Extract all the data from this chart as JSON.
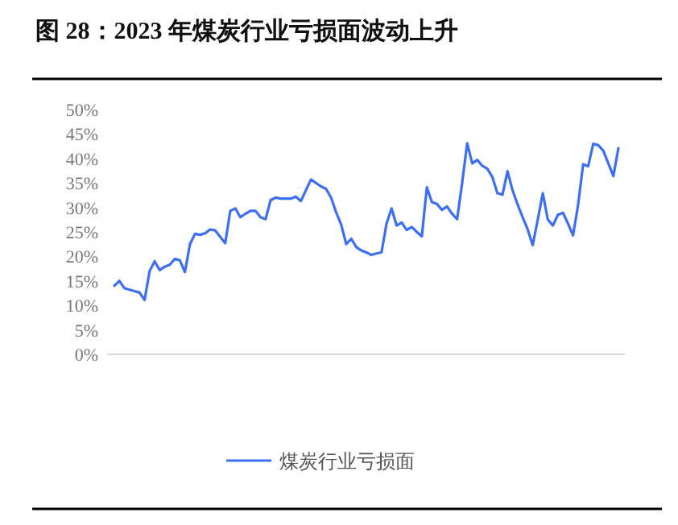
{
  "chart_data": {
    "type": "line",
    "title": "图 28：2023 年煤炭行业亏损面波动上升",
    "categories": [
      null,
      null,
      null,
      null,
      null,
      null,
      null,
      null,
      null,
      null,
      null,
      null,
      null,
      null,
      null,
      null,
      null,
      null,
      null,
      null,
      null,
      null,
      null,
      null,
      null,
      null,
      null,
      null,
      null,
      null,
      null,
      null,
      null,
      null,
      null,
      null,
      null,
      null,
      null,
      null,
      null,
      null,
      null,
      null,
      null,
      null,
      null,
      null,
      null,
      null,
      null,
      null,
      null,
      null,
      null,
      null,
      null,
      null,
      null,
      null,
      null,
      null,
      null,
      null,
      null,
      null,
      null,
      null,
      null,
      null,
      null,
      null,
      null,
      null,
      null,
      null,
      null,
      null,
      null,
      null,
      null,
      null,
      null,
      null,
      null,
      null,
      null,
      null,
      null,
      null,
      null,
      null,
      null,
      null,
      null,
      null,
      null,
      null,
      null,
      null,
      null
    ],
    "series": [
      {
        "name": "煤炭行业亏损面",
        "color": "#3d6ff5",
        "values": [
          14.0,
          15.0,
          13.5,
          13.2,
          12.9,
          12.6,
          11.1,
          17.0,
          19.0,
          17.2,
          17.9,
          18.3,
          19.5,
          19.2,
          16.8,
          22.5,
          24.6,
          24.4,
          24.7,
          25.5,
          25.3,
          24.0,
          22.7,
          29.3,
          29.8,
          28.0,
          28.7,
          29.3,
          29.3,
          28.0,
          27.6,
          31.5,
          32.0,
          31.8,
          31.8,
          31.8,
          32.2,
          31.3,
          33.5,
          35.7,
          35.0,
          34.3,
          33.8,
          32.0,
          29.0,
          26.5,
          22.5,
          23.6,
          21.9,
          21.2,
          20.8,
          20.3,
          20.6,
          20.8,
          26.7,
          29.8,
          26.3,
          26.9,
          25.4,
          26.0,
          25.0,
          24.1,
          34.1,
          31.1,
          30.7,
          29.5,
          30.2,
          28.7,
          27.6,
          35.0,
          43.1,
          39.0,
          39.7,
          38.5,
          37.9,
          36.2,
          32.9,
          32.6,
          37.4,
          33.5,
          30.6,
          28.0,
          25.5,
          22.3,
          27.5,
          32.9,
          27.5,
          26.3,
          28.5,
          28.9,
          26.7,
          24.3,
          30.5,
          38.8,
          38.4,
          43.0,
          42.7,
          41.6,
          39.0,
          36.4,
          42.1
        ]
      }
    ],
    "ylim": [
      0,
      50
    ],
    "yticks": [
      {
        "value": 0,
        "label": "0%"
      },
      {
        "value": 5,
        "label": "5%"
      },
      {
        "value": 10,
        "label": "10%"
      },
      {
        "value": 15,
        "label": "15%"
      },
      {
        "value": 20,
        "label": "20%"
      },
      {
        "value": 25,
        "label": "25%"
      },
      {
        "value": 30,
        "label": "30%"
      },
      {
        "value": 35,
        "label": "35%"
      },
      {
        "value": 40,
        "label": "40%"
      },
      {
        "value": 45,
        "label": "45%"
      },
      {
        "value": 50,
        "label": "50%"
      }
    ],
    "legend": "bottom"
  }
}
